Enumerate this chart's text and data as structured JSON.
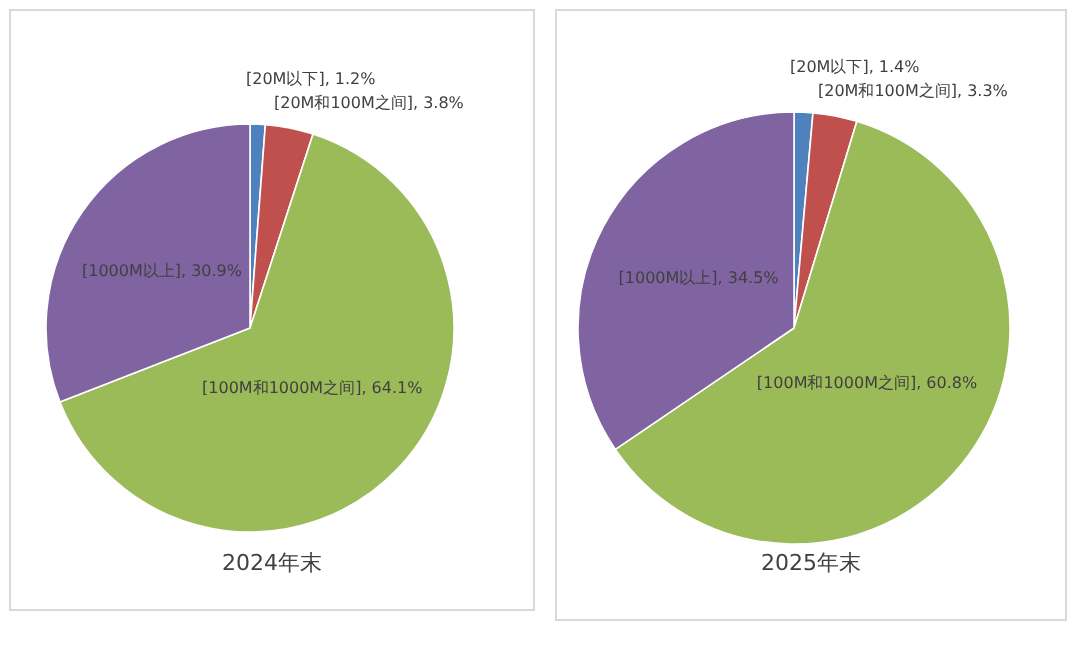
{
  "chart_data": [
    {
      "type": "pie",
      "title": "2024年末",
      "categories": [
        "[20M以下]",
        "[20M和100M之间]",
        "[100M和1000M之间]",
        "[1000M以上]"
      ],
      "values": [
        1.2,
        3.8,
        64.1,
        30.9
      ],
      "colors": [
        "#4f81bd",
        "#c0504d",
        "#9bbb59",
        "#8064a2"
      ],
      "value_labels": [
        "1.2%",
        "3.8%",
        "64.1%",
        "30.9%"
      ]
    },
    {
      "type": "pie",
      "title": "2025年末",
      "categories": [
        "[20M以下]",
        "[20M和100M之间]",
        "[100M和1000M之间]",
        "[1000M以上]"
      ],
      "values": [
        1.4,
        3.3,
        60.8,
        34.5
      ],
      "colors": [
        "#4f81bd",
        "#c0504d",
        "#9bbb59",
        "#8064a2"
      ],
      "value_labels": [
        "1.4%",
        "3.3%",
        "60.8%",
        "34.5%"
      ]
    }
  ]
}
